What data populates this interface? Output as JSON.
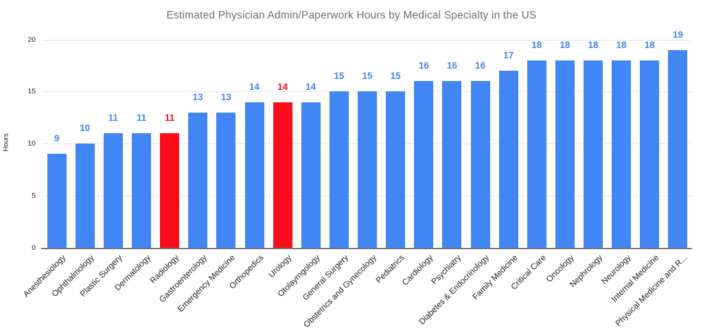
{
  "chart_data": {
    "type": "bar",
    "title": "Estimated Physician Admin/Paperwork Hours by Medical Specialty in the US",
    "xlabel": "",
    "ylabel": "Hours",
    "ylim": [
      0,
      20
    ],
    "yticks": [
      0,
      5,
      10,
      15,
      20
    ],
    "grid": true,
    "legend_position": "none",
    "bar_value_labels_shown": true,
    "categories": [
      "Anesthesiology",
      "Ophthalmology",
      "Plastic Surgery",
      "Dermatology",
      "Radiology",
      "Gastroenterology",
      "Emergency Medicine",
      "Orthopedics",
      "Urology",
      "Otolayrngology",
      "General Surgery",
      "Obstetrics and Gynecology",
      "Pediatrics",
      "Cardiology",
      "Psychiatry",
      "Diabetes & Endocrinology",
      "Family Medicine",
      "Critical Care",
      "Oncology",
      "Nephrology",
      "Neurology",
      "Internal Medicine",
      "Physical Medicine and R..."
    ],
    "values": [
      9,
      10,
      11,
      11,
      11,
      13,
      13,
      14,
      14,
      14,
      15,
      15,
      15,
      16,
      16,
      16,
      17,
      18,
      18,
      18,
      18,
      18,
      19
    ],
    "highlight_indices": [
      4,
      8
    ],
    "highlighted_categories": [
      "Radiology",
      "Urology"
    ],
    "colors": {
      "bar_default": "#4285F4",
      "bar_highlight": "#FA0D1B",
      "title_text": "#6E6E6E",
      "axis_text": "#222222",
      "gridline": "#E5E5E5",
      "axis_line": "#757575",
      "background": "#FFFFFF"
    }
  }
}
